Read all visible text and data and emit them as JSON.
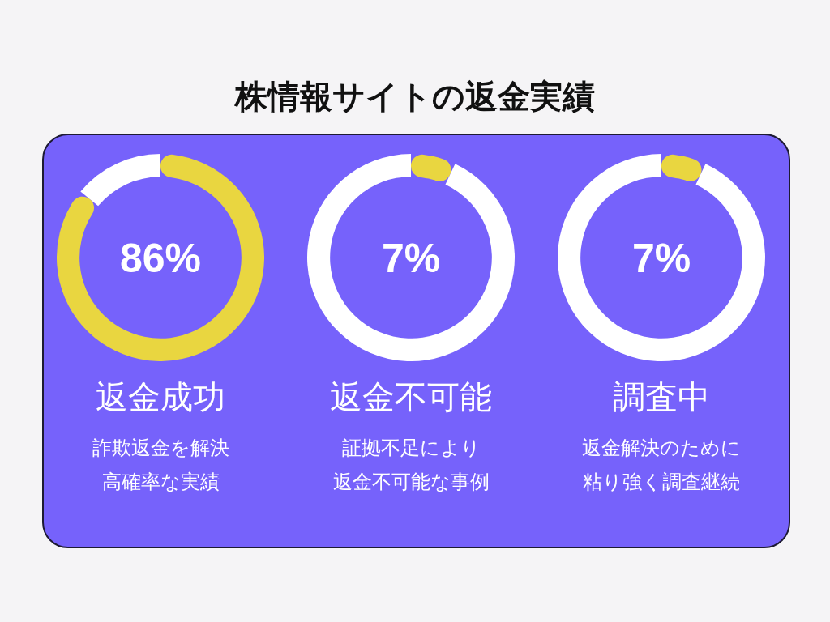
{
  "chart_data": [
    {
      "type": "other",
      "title": "株情報サイトの返金実績"
    },
    {
      "type": "donut",
      "title": "返金成功",
      "subtitle": "86%",
      "annotations": [
        "詐欺返金を解決",
        "高確率な実績"
      ],
      "categories": [
        null,
        null
      ],
      "values": [
        86,
        14
      ],
      "colors": [
        "#e9d640",
        "#ffffff"
      ]
    },
    {
      "type": "donut",
      "title": "返金不可能",
      "subtitle": "7%",
      "annotations": [
        "証拠不足により",
        "返金不可能な事例"
      ],
      "categories": [
        null,
        null
      ],
      "values": [
        7,
        93
      ],
      "colors": [
        "#e9d640",
        "#ffffff"
      ]
    },
    {
      "type": "donut",
      "title": "調査中",
      "subtitle": "7%",
      "annotations": [
        "返金解決のために",
        "粘り強く調査継続"
      ],
      "categories": [
        null,
        null
      ],
      "values": [
        7,
        93
      ],
      "colors": [
        "#e9d640",
        "#ffffff"
      ]
    }
  ]
}
